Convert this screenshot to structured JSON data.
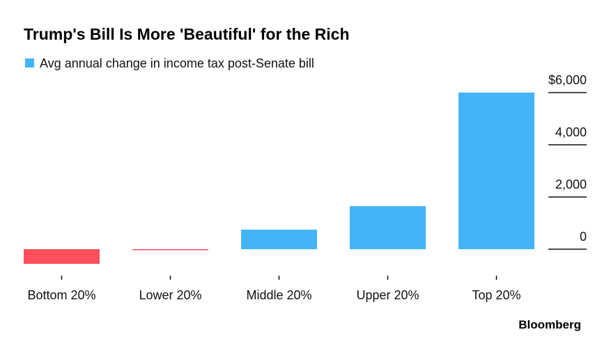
{
  "chart_data": {
    "type": "bar",
    "title": "Trump's Bill Is More 'Beautiful' for the Rich",
    "legend": [
      {
        "label": "Avg annual change in income tax post-Senate bill",
        "color": "#44b4f9"
      }
    ],
    "legend_placement": "top-left",
    "categories": [
      "Bottom 20%",
      "Lower 20%",
      "Middle 20%",
      "Upper 20%",
      "Top 20%"
    ],
    "values": [
      -560,
      -40,
      750,
      1650,
      6000
    ],
    "positive_color": "#44b4f9",
    "negative_color": "#fe4f5b",
    "ylim": [
      -900,
      6000
    ],
    "yticks": [
      0,
      2000,
      4000,
      6000
    ],
    "ytick_labels": [
      "0",
      "2,000",
      "4,000",
      "$6,000"
    ],
    "yaxis_side": "right",
    "xlabel": "",
    "ylabel": ""
  },
  "source_brand": "Bloomberg"
}
